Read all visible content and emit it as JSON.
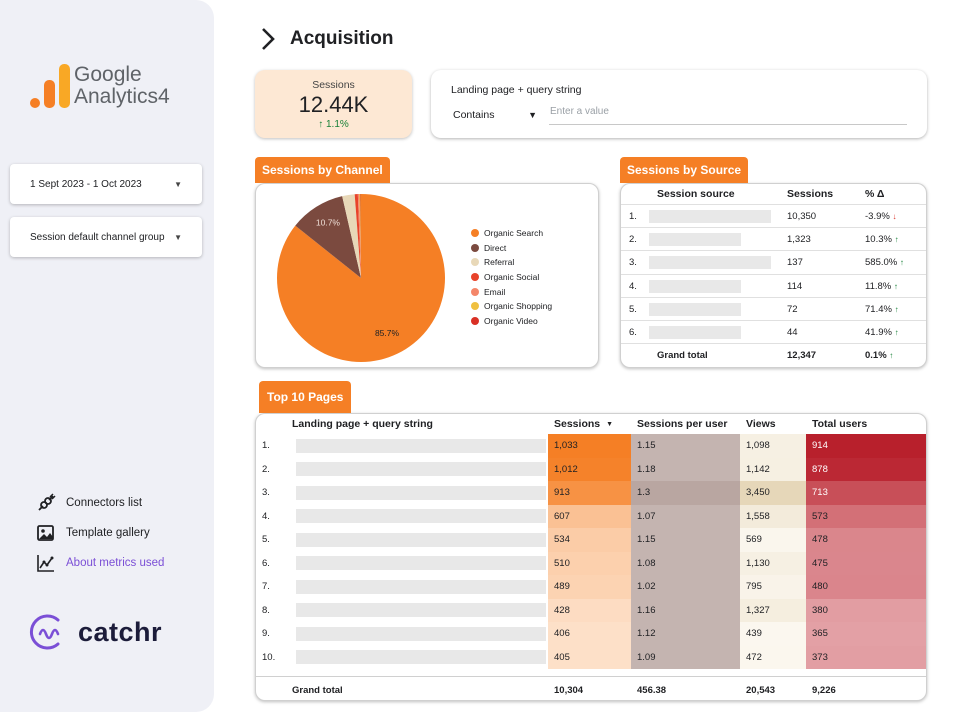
{
  "sidebar": {
    "logo": {
      "line1": "Google",
      "line2": "Analytics",
      "version": "4"
    },
    "date_range": "1 Sept 2023 - 1 Oct 2023",
    "channel_group": "Session default channel group",
    "links": [
      {
        "label": "Connectors list",
        "icon": "plug-icon"
      },
      {
        "label": "Template gallery",
        "icon": "gallery-icon"
      },
      {
        "label": "About metrics used",
        "icon": "chart-icon"
      }
    ],
    "brand": "catchr"
  },
  "header": {
    "title": "Acquisition"
  },
  "scorecard": {
    "label": "Sessions",
    "value": "12.44K",
    "delta": "1.1%",
    "delta_icon": "↑"
  },
  "filter": {
    "label": "Landing page + query string",
    "operator": "Contains",
    "placeholder": "Enter a value"
  },
  "channel_section": {
    "title": "Sessions by Channel",
    "chart_data": {
      "type": "pie",
      "slices": [
        {
          "name": "Organic Search",
          "value": 85.7,
          "label": "85.7%",
          "color": "#f57f25"
        },
        {
          "name": "Direct",
          "value": 10.7,
          "label": "10.7%",
          "color": "#7b4a3f"
        },
        {
          "name": "Referral",
          "value": 2.4,
          "label": "",
          "color": "#e8d8b8"
        },
        {
          "name": "Organic Social",
          "value": 0.6,
          "label": "",
          "color": "#e8432a"
        },
        {
          "name": "Email",
          "value": 0.3,
          "label": "",
          "color": "#f4866a"
        },
        {
          "name": "Organic Shopping",
          "value": 0.2,
          "label": "",
          "color": "#f0c040"
        },
        {
          "name": "Organic Video",
          "value": 0.1,
          "label": "",
          "color": "#d93025"
        }
      ]
    }
  },
  "source_section": {
    "title": "Sessions by Source",
    "columns": [
      "Session source",
      "Sessions",
      "% Δ"
    ],
    "rows": [
      {
        "rank": "1.",
        "sessions": "10,350",
        "delta": "-3.9%",
        "dir": "down"
      },
      {
        "rank": "2.",
        "sessions": "1,323",
        "delta": "10.3%",
        "dir": "up"
      },
      {
        "rank": "3.",
        "sessions": "137",
        "delta": "585.0%",
        "dir": "up"
      },
      {
        "rank": "4.",
        "sessions": "114",
        "delta": "11.8%",
        "dir": "up"
      },
      {
        "rank": "5.",
        "sessions": "72",
        "delta": "71.4%",
        "dir": "up"
      },
      {
        "rank": "6.",
        "sessions": "44",
        "delta": "41.9%",
        "dir": "up"
      }
    ],
    "total": {
      "label": "Grand total",
      "sessions": "12,347",
      "delta": "0.1%",
      "dir": "up"
    },
    "arrows": {
      "up": "↑",
      "down": "↓"
    }
  },
  "pages_section": {
    "title": "Top 10 Pages",
    "columns": [
      "Landing page + query string",
      "Sessions",
      "Sessions per user",
      "Views",
      "Total users"
    ],
    "sort_icon": "▼",
    "rows": [
      {
        "rank": "1.",
        "sessions": "1,033",
        "spu": "1.15",
        "views": "1,098",
        "users": "914"
      },
      {
        "rank": "2.",
        "sessions": "1,012",
        "spu": "1.18",
        "views": "1,142",
        "users": "878"
      },
      {
        "rank": "3.",
        "sessions": "913",
        "spu": "1.3",
        "views": "3,450",
        "users": "713"
      },
      {
        "rank": "4.",
        "sessions": "607",
        "spu": "1.07",
        "views": "1,558",
        "users": "573"
      },
      {
        "rank": "5.",
        "sessions": "534",
        "spu": "1.15",
        "views": "569",
        "users": "478"
      },
      {
        "rank": "6.",
        "sessions": "510",
        "spu": "1.08",
        "views": "1,130",
        "users": "475"
      },
      {
        "rank": "7.",
        "sessions": "489",
        "spu": "1.02",
        "views": "795",
        "users": "480"
      },
      {
        "rank": "8.",
        "sessions": "428",
        "spu": "1.16",
        "views": "1,327",
        "users": "380"
      },
      {
        "rank": "9.",
        "sessions": "406",
        "spu": "1.12",
        "views": "439",
        "users": "365"
      },
      {
        "rank": "10.",
        "sessions": "405",
        "spu": "1.09",
        "views": "472",
        "users": "373"
      }
    ],
    "total": {
      "label": "Grand total",
      "sessions": "10,304",
      "spu": "456.38",
      "views": "20,543",
      "users": "9,226"
    },
    "colors": {
      "sessions_max": "#f57f25",
      "sessions_min": "#fde0c8",
      "spu": "#c4b4b0",
      "spu_dark": "#b9a6a1",
      "views_max": "#e6d7b9",
      "views_min": "#fbf7ef",
      "users_max": "#b8202c",
      "users_min": "#e3a0a5"
    }
  }
}
